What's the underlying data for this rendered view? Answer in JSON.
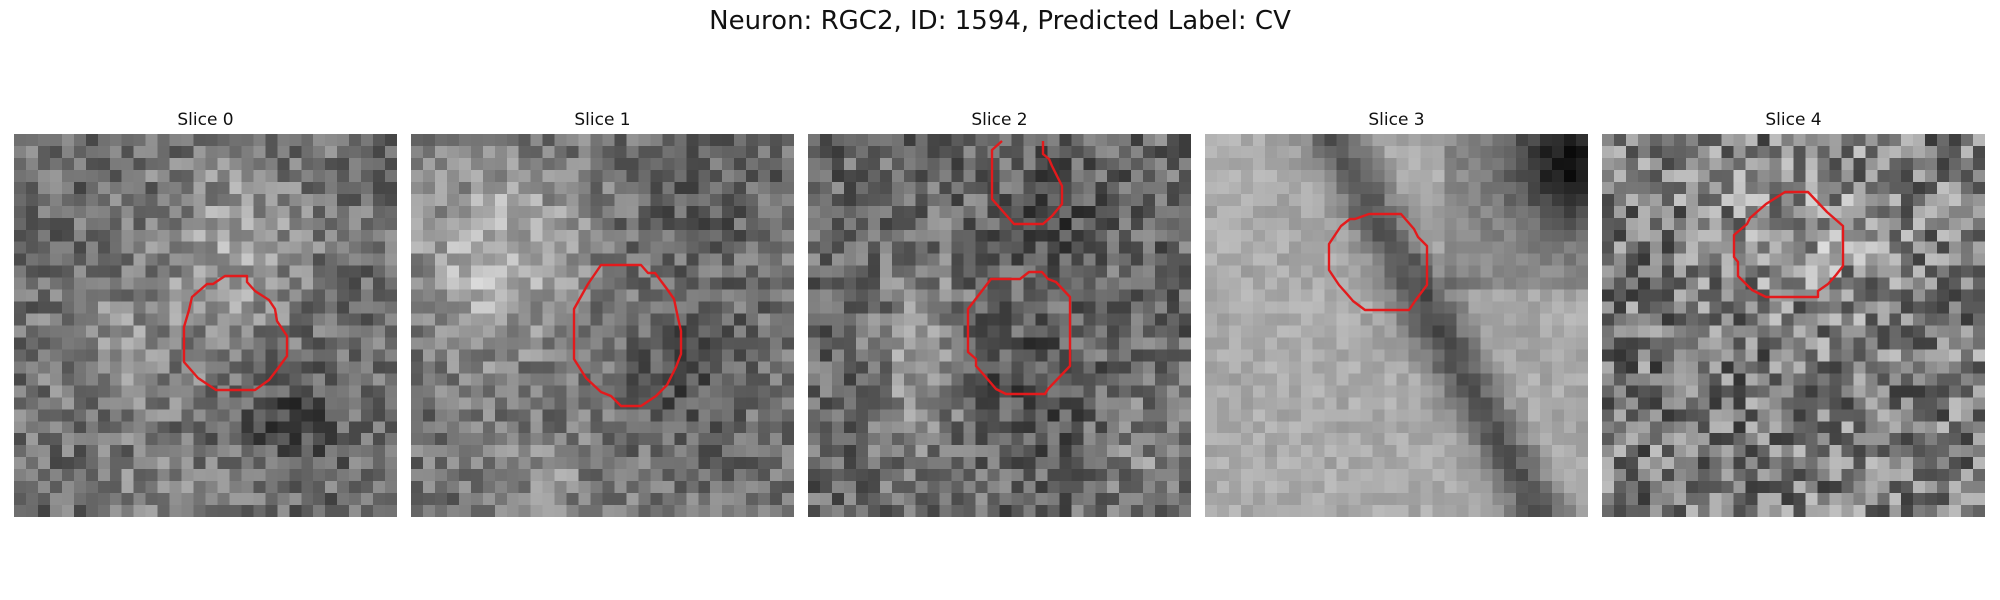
{
  "figure": {
    "title": "Neuron: RGC2, ID: 1594, Predicted Label: CV"
  },
  "colors": {
    "contour": "#e31a1c",
    "background": "#ffffff"
  },
  "panels": [
    {
      "title": "Slice 0"
    },
    {
      "title": "Slice 1"
    },
    {
      "title": "Slice 2"
    },
    {
      "title": "Slice 3"
    },
    {
      "title": "Slice 4"
    }
  ]
}
